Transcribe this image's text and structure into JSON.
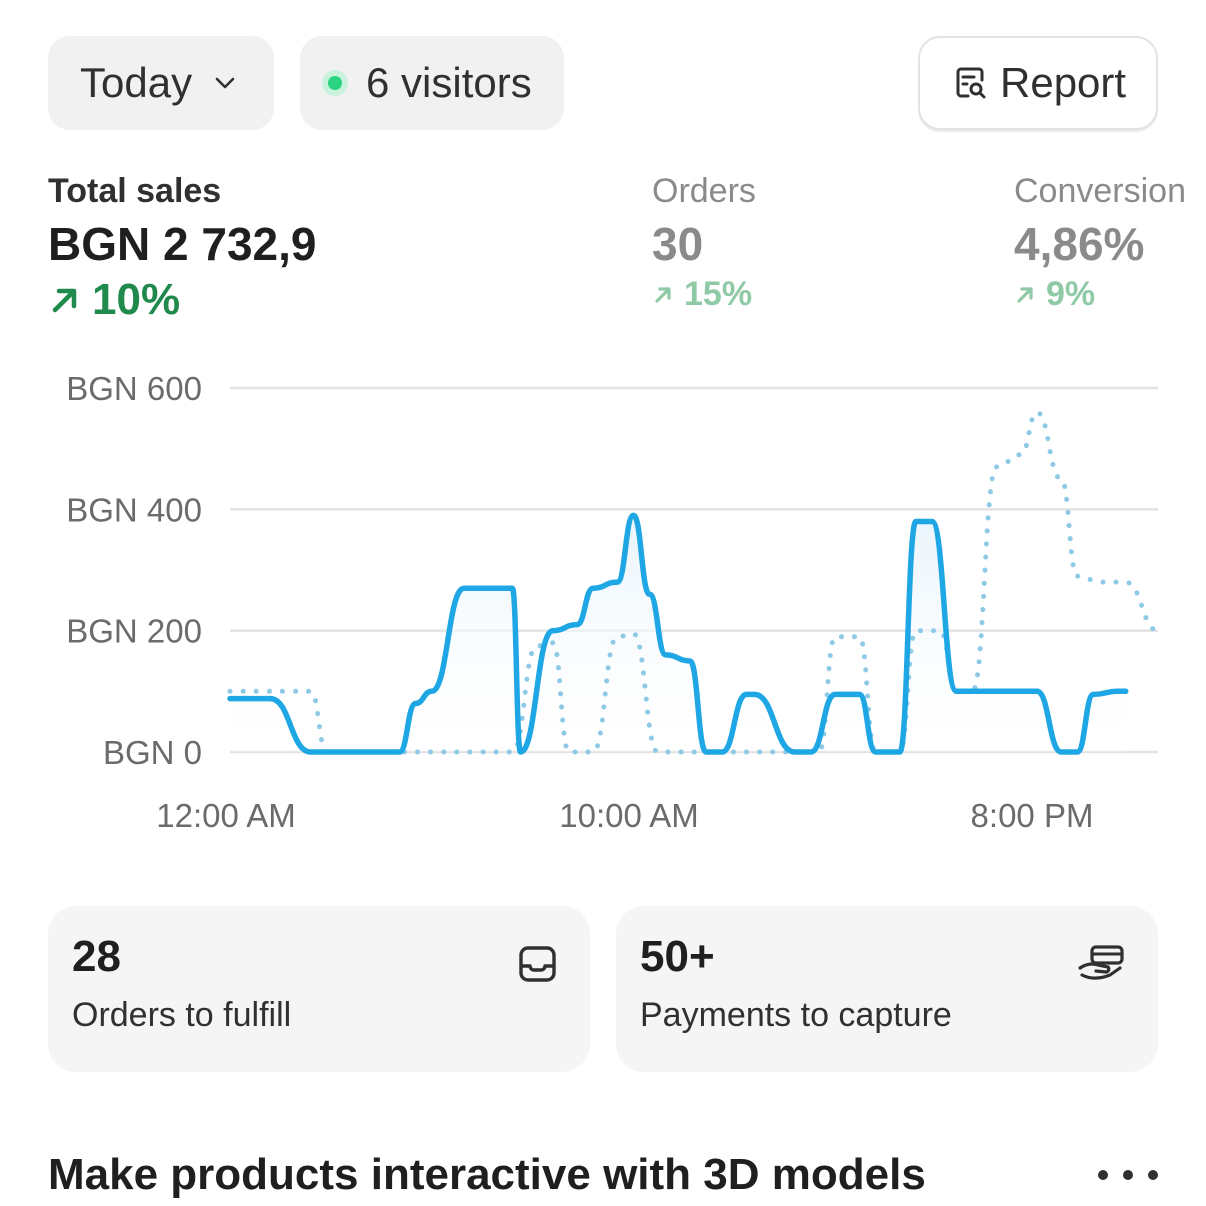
{
  "header": {
    "date_range_label": "Today",
    "visitors_label": "6 visitors",
    "report_label": "Report",
    "colors": {
      "live_dot": "#29d37f"
    }
  },
  "metrics": {
    "total_sales": {
      "label": "Total sales",
      "value": "BGN 2 732,9",
      "delta": "10%"
    },
    "orders": {
      "label": "Orders",
      "value": "30",
      "delta": "15%"
    },
    "conversion": {
      "label": "Conversion",
      "value": "4,86%",
      "delta": "9%"
    }
  },
  "chart_data": {
    "type": "line",
    "title": "",
    "xlabel": "",
    "ylabel": "",
    "y_ticks": [
      "BGN 600",
      "BGN 400",
      "BGN 200",
      "BGN 0"
    ],
    "x_ticks": [
      "12:00 AM",
      "10:00 AM",
      "8:00 PM"
    ],
    "ylim": [
      0,
      600
    ],
    "xlim": [
      0,
      23
    ],
    "grid": true,
    "series": [
      {
        "style": "solid",
        "color": "#1ea7e4",
        "x": [
          0,
          0.8,
          1,
          2,
          2.4,
          3,
          4,
          4.2,
          4.6,
          5,
          5.8,
          6,
          6.6,
          7,
          7.2,
          8,
          8.6,
          9,
          9.6,
          10,
          10.4,
          10.8,
          11.4,
          11.8,
          12.2,
          12.8,
          13,
          14,
          14.4,
          15,
          15.6,
          16,
          16.6,
          17,
          17.4,
          18,
          18.4,
          19,
          19.6,
          20,
          20.6,
          21,
          21.4,
          22,
          22.2
        ],
        "values": [
          88,
          88,
          88,
          0,
          0,
          0,
          0,
          0,
          80,
          100,
          270,
          270,
          270,
          270,
          0,
          200,
          210,
          270,
          280,
          390,
          260,
          160,
          150,
          0,
          0,
          95,
          95,
          0,
          0,
          95,
          95,
          0,
          0,
          380,
          380,
          100,
          100,
          100,
          100,
          100,
          0,
          0,
          95,
          100,
          100
        ]
      },
      {
        "style": "dotted",
        "color": "#8ecae6",
        "x": [
          0,
          0.8,
          1.6,
          2,
          2.4,
          3,
          4,
          5,
          6,
          7,
          7.6,
          8,
          8.4,
          9,
          9.6,
          10,
          10.6,
          11,
          12,
          13,
          14,
          14.6,
          15,
          15.6,
          16,
          16.6,
          17,
          17.6,
          18,
          18.4,
          19,
          19.6,
          20,
          20.6,
          21,
          21.6,
          22.2,
          23
        ],
        "values": [
          100,
          100,
          100,
          100,
          0,
          0,
          0,
          0,
          0,
          0,
          175,
          180,
          0,
          0,
          190,
          195,
          0,
          0,
          0,
          0,
          0,
          0,
          190,
          190,
          0,
          0,
          200,
          200,
          100,
          100,
          470,
          490,
          560,
          450,
          290,
          280,
          280,
          200
        ]
      }
    ]
  },
  "cards": [
    {
      "value": "28",
      "label": "Orders to fulfill",
      "icon": "inbox-icon"
    },
    {
      "value": "50+",
      "label": "Payments to capture",
      "icon": "hand-cash-icon"
    }
  ],
  "promo": {
    "title": "Make products interactive with 3D models"
  }
}
